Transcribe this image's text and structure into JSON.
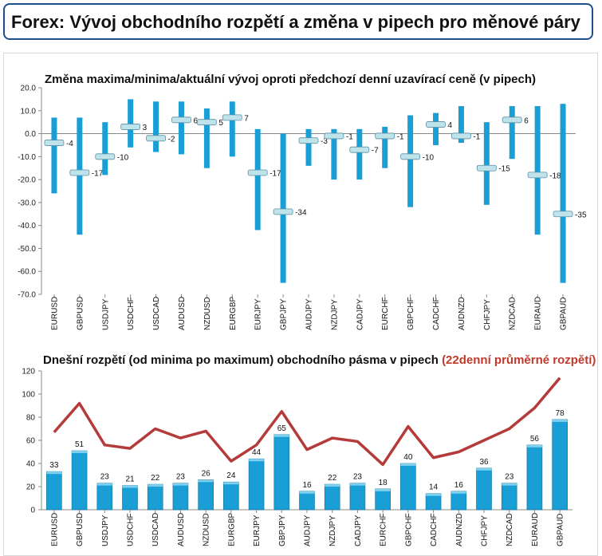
{
  "header": {
    "title": "Forex: Vývoj obchodního rozpětí a změna v pipech pro měnové páry"
  },
  "colors": {
    "bar": "#1a9ed6",
    "line": "#b53a3a",
    "marker": "#bfe3ea"
  },
  "chart_data": [
    {
      "type": "range",
      "title": "Změna maxima/minima/aktuální vývoj oproti předchozí denní uzavírací ceně (v pipech)",
      "categories": [
        "EURUSD",
        "GBPUSD",
        "USDJPY",
        "USDCHF",
        "USDCAD",
        "AUDUSD",
        "NZDUSD",
        "EURGBP",
        "EURJPY",
        "GBPJPY",
        "AUDJPY",
        "NZDJPY",
        "CADJPY",
        "EURCHF",
        "GBPCHF",
        "CADCHF",
        "AUDNZD",
        "CHFJPY",
        "NZDCAD",
        "EURAUD",
        "GBPAUD"
      ],
      "high": [
        7,
        7,
        5,
        15,
        14,
        14,
        11,
        14,
        2,
        0,
        2,
        2,
        2,
        3,
        8,
        9,
        12,
        5,
        12,
        12,
        13
      ],
      "low": [
        -26,
        -44,
        -18,
        -6,
        -8,
        -9,
        -15,
        -10,
        -42,
        -65,
        -14,
        -20,
        -20,
        -15,
        -32,
        -5,
        -4,
        -31,
        -11,
        -44,
        -65
      ],
      "current": [
        -4,
        -17,
        -10,
        3,
        -2,
        6,
        5,
        7,
        -17,
        -34,
        -3,
        -1,
        -7,
        -1,
        -10,
        4,
        -1,
        -15,
        6,
        -18,
        -35
      ],
      "current_labels": [
        "-4",
        "-17",
        "-10",
        "3",
        "-2",
        "6",
        "5",
        "7",
        "-17",
        "-34",
        "-3",
        "-1",
        "-7",
        "-1",
        "-10",
        "4",
        "-1",
        "-15",
        "6",
        "-18",
        "-35"
      ],
      "ylim": [
        -70,
        20
      ],
      "yticks": [
        "20.0",
        "10.0",
        "0.0",
        "-10.0",
        "-20.0",
        "-30.0",
        "-40.0",
        "-50.0",
        "-60.0",
        "-70.0"
      ],
      "grid": false
    },
    {
      "type": "bar+line",
      "title": "Dnešní rozpětí (od minima po maximum) obchodního pásma v pipech",
      "title_highlight": "(22denní průměrné rozpětí)",
      "categories": [
        "EURUSD",
        "GBPUSD",
        "USDJPY",
        "USDCHF",
        "USDCAD",
        "AUDUSD",
        "NZDUSD",
        "EURGBP",
        "EURJPY",
        "GBPJPY",
        "AUDJPY",
        "NZDJPY",
        "CADJPY",
        "EURCHF",
        "GBPCHF",
        "CADCHF",
        "AUDNZD",
        "CHFJPY",
        "NZDCAD",
        "EURAUD",
        "GBPAUD"
      ],
      "values": [
        33,
        51,
        23,
        21,
        22,
        23,
        26,
        24,
        44,
        65,
        16,
        22,
        23,
        18,
        40,
        14,
        16,
        36,
        23,
        56,
        78
      ],
      "value_labels": [
        "33",
        "51",
        "23",
        "21",
        "22",
        "23",
        "26",
        "24",
        "44",
        "65",
        "16",
        "22",
        "23",
        "18",
        "40",
        "14",
        "16",
        "36",
        "23",
        "56",
        "78"
      ],
      "avg_range": [
        67,
        92,
        56,
        53,
        70,
        62,
        68,
        42,
        56,
        85,
        52,
        62,
        59,
        39,
        72,
        45,
        50,
        60,
        70,
        88,
        114
      ],
      "ylim": [
        0,
        120
      ],
      "yticks": [
        "0",
        "20",
        "40",
        "60",
        "80",
        "100",
        "120"
      ],
      "grid": false
    }
  ]
}
